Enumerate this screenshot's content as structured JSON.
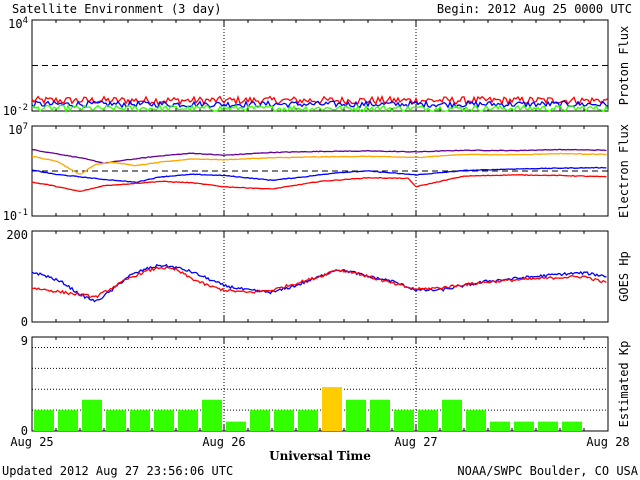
{
  "header": {
    "title": "Satellite Environment (3 day)",
    "begin": "Begin:  2012 Aug 25 0000 UTC"
  },
  "footer": {
    "updated": "Updated 2012 Aug 27 23:56:06 UTC",
    "credit": "NOAA/SWPC Boulder, CO USA"
  },
  "colors": {
    "red": "#ff0000",
    "blue": "#0000ff",
    "green": "#33ff00",
    "orange": "#ffa500",
    "purple": "#660099",
    "kp_normal": "#33ff00",
    "kp_active": "#ffcc00"
  },
  "chart_data": [
    {
      "type": "line",
      "panel": "proton",
      "ylabel": "Proton Flux",
      "yscale": "log",
      "ylim": [
        0.01,
        10000
      ],
      "tick_labels": [
        "10^4",
        "10^-2"
      ],
      "xlim": [
        0,
        72
      ],
      "threshold": 10,
      "series": [
        {
          "color": "red",
          "base": 0.05,
          "noise": 0.25
        },
        {
          "color": "blue",
          "base": 0.028,
          "noise": 0.2
        },
        {
          "color": "green",
          "base": 0.015,
          "noise": 0.2
        }
      ]
    },
    {
      "type": "line",
      "panel": "electron",
      "ylabel": "Electron Flux",
      "yscale": "log",
      "ylim": [
        0.1,
        10000000
      ],
      "tick_labels": [
        "10^7",
        "10^-1"
      ],
      "xlim": [
        0,
        72
      ],
      "threshold": 1000,
      "series": [
        {
          "color": "purple",
          "x": [
            0,
            3,
            6,
            9,
            12,
            16,
            20,
            24,
            30,
            36,
            42,
            48,
            54,
            60,
            66,
            72
          ],
          "y": [
            80000,
            35000,
            15000,
            5000,
            10000,
            22000,
            38000,
            25000,
            45000,
            55000,
            60000,
            50000,
            70000,
            65000,
            80000,
            70000
          ]
        },
        {
          "color": "orange",
          "x": [
            0,
            3,
            6,
            8,
            10,
            13,
            16,
            20,
            24,
            30,
            36,
            42,
            48,
            54,
            60,
            66,
            72
          ],
          "y": [
            20000,
            8000,
            500,
            4000,
            6000,
            3000,
            6000,
            12000,
            10000,
            15000,
            18000,
            20000,
            16000,
            30000,
            28000,
            35000,
            30000
          ]
        },
        {
          "color": "blue",
          "x": [
            0,
            3,
            6,
            9,
            13,
            16,
            20,
            24,
            30,
            34,
            38,
            42,
            48,
            54,
            60,
            66,
            72
          ],
          "y": [
            1200,
            500,
            300,
            180,
            100,
            300,
            500,
            400,
            150,
            300,
            700,
            1000,
            450,
            1100,
            1500,
            1800,
            2000
          ]
        },
        {
          "color": "red",
          "x": [
            0,
            2,
            4,
            6,
            9,
            13,
            16,
            20,
            24,
            30,
            36,
            42,
            47,
            48,
            54,
            60,
            66,
            72
          ],
          "y": [
            100,
            60,
            30,
            15,
            50,
            80,
            120,
            90,
            40,
            25,
            120,
            250,
            220,
            40,
            350,
            450,
            400,
            300
          ]
        }
      ]
    },
    {
      "type": "line",
      "panel": "hp",
      "ylabel": "GOES Hp",
      "ylim": [
        0,
        200
      ],
      "tick_labels": [
        "200",
        "0"
      ],
      "xlim": [
        0,
        72
      ],
      "series": [
        {
          "color": "blue",
          "x": [
            0,
            2,
            4,
            6,
            8,
            10,
            12,
            14,
            16,
            18,
            20,
            22,
            24,
            27,
            30,
            33,
            36,
            38,
            40,
            42,
            45,
            48,
            51,
            54,
            57,
            60,
            63,
            66,
            69,
            72
          ],
          "y": [
            110,
            100,
            85,
            60,
            45,
            70,
            100,
            115,
            125,
            120,
            110,
            95,
            80,
            70,
            65,
            80,
            100,
            115,
            110,
            100,
            90,
            70,
            70,
            80,
            90,
            95,
            100,
            105,
            108,
            100
          ]
        },
        {
          "color": "red",
          "x": [
            0,
            2,
            4,
            6,
            8,
            10,
            12,
            14,
            16,
            18,
            20,
            22,
            24,
            27,
            30,
            33,
            36,
            38,
            40,
            42,
            45,
            48,
            51,
            54,
            57,
            60,
            63,
            66,
            69,
            72
          ],
          "y": [
            75,
            70,
            65,
            60,
            55,
            75,
            95,
            110,
            120,
            115,
            95,
            80,
            70,
            65,
            70,
            85,
            100,
            115,
            110,
            100,
            85,
            72,
            75,
            82,
            88,
            92,
            95,
            98,
            100,
            85
          ]
        }
      ]
    },
    {
      "type": "bar",
      "panel": "kp",
      "ylabel": "Estimated Kp",
      "ylim": [
        0,
        9
      ],
      "tick_labels": [
        "9",
        "0"
      ],
      "grid_y": [
        2,
        4,
        6,
        8
      ],
      "bar_hours": 3,
      "values": [
        2.0,
        2.0,
        3.0,
        2.0,
        2.0,
        2.0,
        2.0,
        3.0,
        0.9,
        2.0,
        2.0,
        2.0,
        4.2,
        3.0,
        3.0,
        2.0,
        2.0,
        3.0,
        2.0,
        0.9,
        0.9,
        0.9,
        0.9,
        0.0
      ],
      "highlight": [
        12
      ]
    }
  ],
  "xaxis": {
    "label": "Universal Time",
    "ticks": [
      "Aug 25",
      "Aug 26",
      "Aug 27",
      "Aug 28"
    ]
  }
}
